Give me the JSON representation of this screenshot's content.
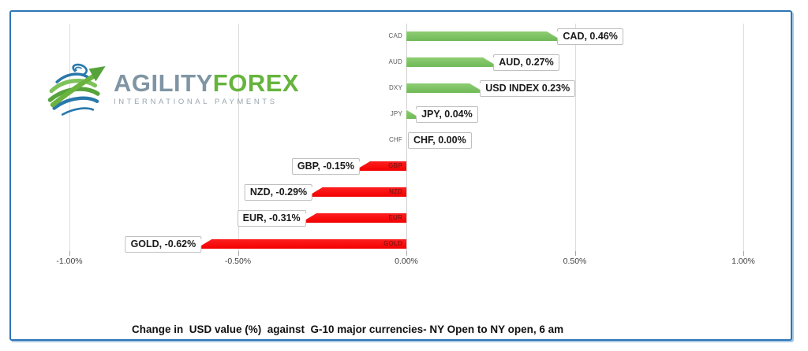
{
  "logo": {
    "brand_first": "AGILITY",
    "brand_second": "FOREX",
    "tagline": "INTERNATIONAL PAYMENTS",
    "globe_blue": "#2878ab",
    "globe_green_light": "#7fc25b",
    "globe_green_dark": "#55a33a"
  },
  "frame": {
    "border_color": "#2e75b6"
  },
  "chart_data": {
    "type": "bar",
    "orientation": "horizontal",
    "title": "Change in  USD value (%)  against  G-10 major currencies- NY Open to NY open, 6 am",
    "categories": [
      "CAD",
      "AUD",
      "DXY",
      "JPY",
      "CHF",
      "GBP",
      "NZD",
      "EUR",
      "GOLD"
    ],
    "values": [
      0.46,
      0.27,
      0.23,
      0.04,
      0.0,
      -0.15,
      -0.29,
      -0.31,
      -0.62
    ],
    "data_labels": [
      "CAD, 0.46%",
      "AUD, 0.27%",
      "USD INDEX 0.23%",
      "JPY, 0.04%",
      "CHF, 0.00%",
      "GBP, -0.15%",
      "NZD, -0.29%",
      "EUR, -0.31%",
      "GOLD, -0.62%"
    ],
    "x_tick_labels": [
      "-1.00%",
      "-0.50%",
      "0.00%",
      "0.50%",
      "1.00%"
    ],
    "x_tick_values": [
      -1,
      -0.5,
      0,
      0.5,
      1
    ],
    "xlim": [
      -1,
      1
    ],
    "grid": true,
    "legend": "none",
    "positive_color": "#7cc164",
    "negative_color": "#fb0000",
    "xlabel": "",
    "ylabel": ""
  }
}
